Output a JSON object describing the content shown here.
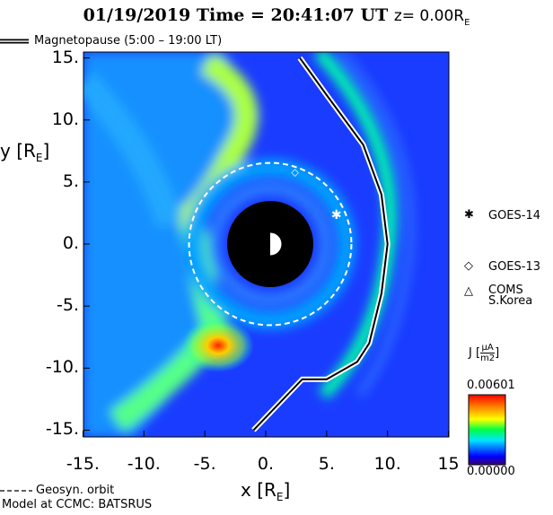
{
  "title": {
    "date": "01/19/2019",
    "time_label": "Time = 20:41:07 UT",
    "z_label": "z= 0.00R",
    "z_sub": "E"
  },
  "legend": {
    "magnetopause": "Magnetopause (5:00 – 19:00 LT)",
    "geosyn": "Geosyn. orbit",
    "model": "Model at CCMC: BATSRUS"
  },
  "satellites": [
    {
      "name": "GOES-14",
      "symbol": "✱",
      "x": 5.8,
      "y": 2.3
    },
    {
      "name": "GOES-13",
      "symbol": "◇",
      "x": 2.4,
      "y": 5.8
    },
    {
      "name": "COMS",
      "name2": "S.Korea",
      "symbol": "△"
    }
  ],
  "colorbar": {
    "label": "J",
    "unit_num": "μA",
    "unit_den": "m2",
    "max": "0.00601",
    "min": "0.00000",
    "colors": [
      "#3a006e",
      "#0000ff",
      "#00e5ff",
      "#00ff00",
      "#ffff00",
      "#ff8800",
      "#ff0000"
    ]
  },
  "chart_data": {
    "type": "heatmap",
    "title": "01/19/2019 Time = 20:41:07 UT z= 0.00RE",
    "xlabel": "x [RE]",
    "ylabel": "y [RE]",
    "xlim": [
      -15,
      15
    ],
    "ylim": [
      -15,
      15
    ],
    "xticks": [
      "-15.",
      "-10.",
      "-5.",
      "0.",
      "5.",
      "10.",
      "15"
    ],
    "yticks": [
      "15.",
      "10.",
      "5.",
      "0.",
      "-5.",
      "-10.",
      "-15."
    ],
    "variable": "J",
    "vrange": [
      0,
      0.00601
    ],
    "geosync_radius": 6.6,
    "earth_radius_cutoff": 3.5,
    "magnetopause": [
      [
        2.8,
        15
      ],
      [
        5,
        12
      ],
      [
        8,
        8
      ],
      [
        9.5,
        4
      ],
      [
        10,
        0
      ],
      [
        9.5,
        -4
      ],
      [
        8.5,
        -8
      ],
      [
        7.5,
        -9.5
      ],
      [
        5,
        -10.9
      ],
      [
        3,
        -10.9
      ],
      [
        -1,
        -15
      ]
    ]
  },
  "axis": {
    "x_label": "x [R",
    "x_sub": "E",
    "x_close": "]",
    "y_label": "y [R",
    "y_sub": "E",
    "y_close": "]"
  }
}
